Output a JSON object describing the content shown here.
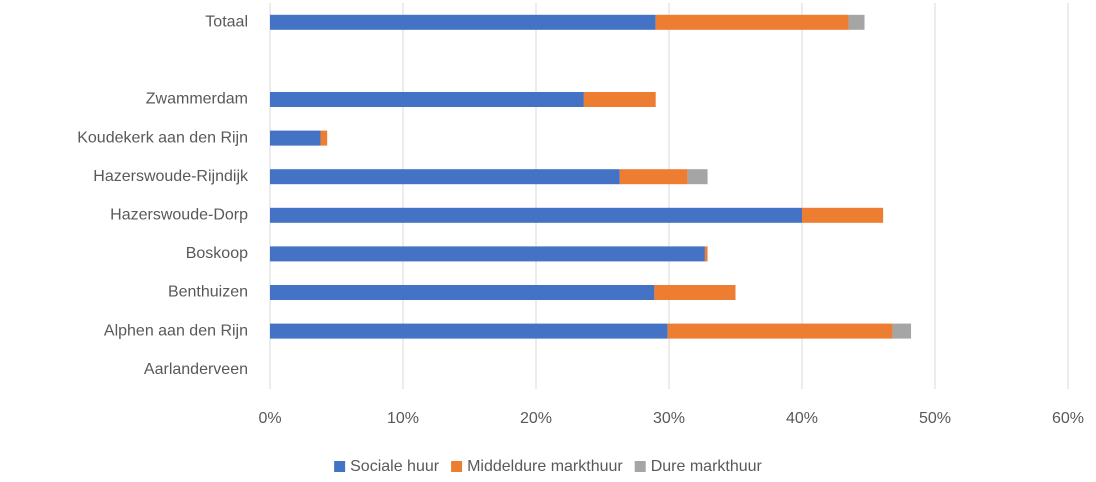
{
  "chart_data": {
    "type": "stacked-bar-horizontal",
    "categories": [
      "Totaal",
      null,
      "Zwammerdam",
      "Koudekerk aan den Rijn",
      "Hazerswoude-Rijndijk",
      "Hazerswoude-Dorp",
      "Boskoop",
      "Benthuizen",
      "Alphen aan den Rijn",
      "Aarlanderveen"
    ],
    "series": [
      {
        "name": "Sociale huur",
        "color": "#4472c4",
        "values": [
          29,
          null,
          23.6,
          3.8,
          26.3,
          40,
          32.7,
          28.9,
          29.9,
          0
        ]
      },
      {
        "name": "Middeldure markthuur",
        "color": "#ed7d31",
        "values": [
          14.5,
          null,
          5.4,
          0.5,
          5.1,
          6.1,
          0.2,
          6.1,
          16.9,
          0
        ]
      },
      {
        "name": "Dure markthuur",
        "color": "#a5a5a5",
        "values": [
          1.2,
          null,
          0,
          0,
          1.5,
          0,
          0,
          0,
          1.4,
          0
        ]
      }
    ],
    "xlim": [
      0,
      60
    ],
    "xticks": [
      {
        "value": 0,
        "label": "0%"
      },
      {
        "value": 10,
        "label": "10%"
      },
      {
        "value": 20,
        "label": "20%"
      },
      {
        "value": 30,
        "label": "30%"
      },
      {
        "value": 40,
        "label": "40%"
      },
      {
        "value": 50,
        "label": "50%"
      },
      {
        "value": 60,
        "label": "60%"
      }
    ],
    "grid": true,
    "legend": "bottom"
  }
}
